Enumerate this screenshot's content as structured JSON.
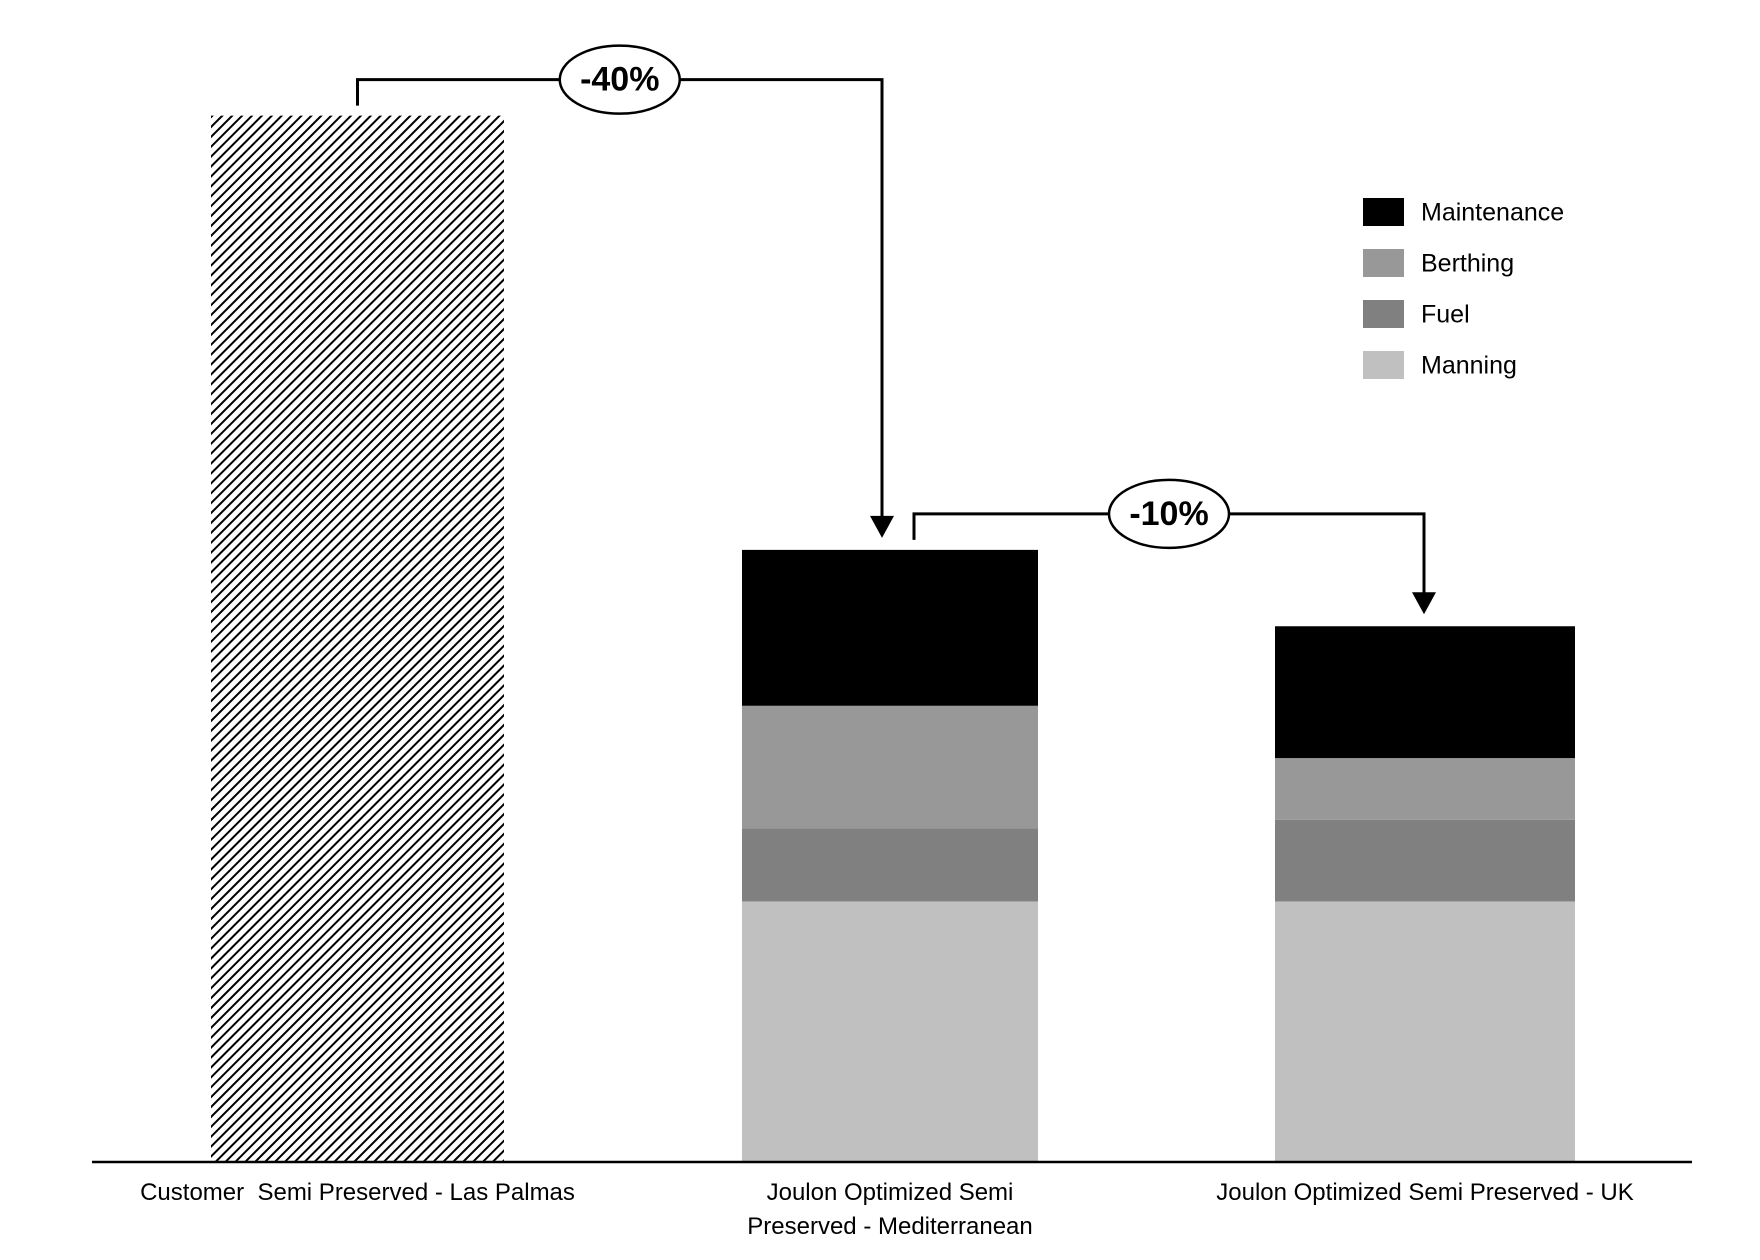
{
  "chart_data": {
    "type": "stacked_bar",
    "categories": [
      "Customer  Semi Preserved - Las Palmas",
      "Joulon Optimized Semi\nPreserved - Mediterranean",
      "Joulon Optimized Semi Preserved - UK"
    ],
    "series": [
      {
        "name": "Manning",
        "color": "#c0c0c0",
        "values": [
          null,
          24.9,
          24.9
        ]
      },
      {
        "name": "Fuel",
        "color": "#808080",
        "values": [
          null,
          7.0,
          7.8
        ]
      },
      {
        "name": "Berthing",
        "color": "#989898",
        "values": [
          null,
          11.7,
          5.9
        ]
      },
      {
        "name": "Maintenance",
        "color": "#000000",
        "values": [
          null,
          14.9,
          12.6
        ]
      },
      {
        "pattern": "hatch",
        "color": "#000000",
        "values": [
          100,
          null,
          null
        ]
      }
    ],
    "legend_order": [
      3,
      2,
      1,
      0
    ],
    "ylim": [
      0,
      110
    ],
    "annotations": [
      {
        "text": "-40%",
        "from": 0,
        "to": 1
      },
      {
        "text": "-10%",
        "from": 1,
        "to": 2
      }
    ]
  }
}
